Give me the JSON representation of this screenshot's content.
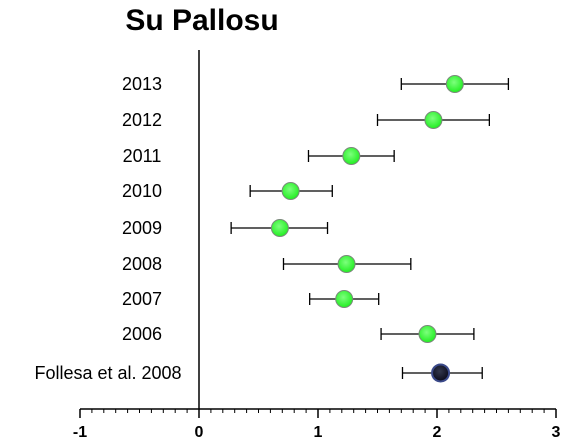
{
  "chart_data": {
    "type": "scatter",
    "subtype": "forest-plot",
    "title": "Su Pallosu",
    "xlabel": "",
    "ylabel": "",
    "xlim": [
      -1,
      3
    ],
    "x_ticks": [
      -1,
      0,
      1,
      2,
      3
    ],
    "x_tick_labels": [
      "-1",
      "0",
      "1",
      "2",
      "3"
    ],
    "minor_ticks_per_unit": 10,
    "grid": false,
    "reference_line_x": 0,
    "colors": {
      "year_marker": "#22ee22",
      "reference_marker": "#0a0a1a",
      "error_bar": "#000000",
      "axis": "#000000"
    },
    "rows": [
      {
        "label": "2013",
        "value": 2.15,
        "lower": 1.7,
        "upper": 2.6,
        "marker": "year"
      },
      {
        "label": "2012",
        "value": 1.97,
        "lower": 1.5,
        "upper": 2.44,
        "marker": "year"
      },
      {
        "label": "2011",
        "value": 1.28,
        "lower": 0.92,
        "upper": 1.64,
        "marker": "year"
      },
      {
        "label": "2010",
        "value": 0.77,
        "lower": 0.43,
        "upper": 1.12,
        "marker": "year"
      },
      {
        "label": "2009",
        "value": 0.68,
        "lower": 0.27,
        "upper": 1.08,
        "marker": "year"
      },
      {
        "label": "2008",
        "value": 1.24,
        "lower": 0.71,
        "upper": 1.78,
        "marker": "year"
      },
      {
        "label": "2007",
        "value": 1.22,
        "lower": 0.93,
        "upper": 1.51,
        "marker": "year"
      },
      {
        "label": "2006",
        "value": 1.92,
        "lower": 1.53,
        "upper": 2.31,
        "marker": "year"
      },
      {
        "label": "Follesa et al. 2008",
        "value": 2.03,
        "lower": 1.71,
        "upper": 2.38,
        "marker": "reference"
      }
    ]
  }
}
